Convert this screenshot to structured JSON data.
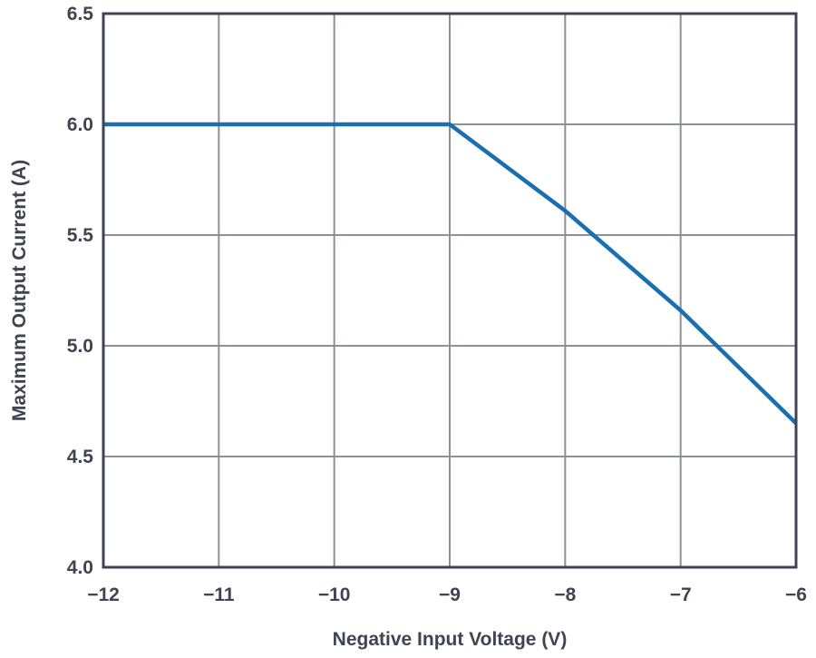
{
  "chart_data": {
    "type": "line",
    "title": "",
    "xlabel": "Negative Input Voltage (V)",
    "ylabel": "Maximum Output Current (A)",
    "xlim": [
      -12,
      -6
    ],
    "ylim": [
      4.0,
      6.5
    ],
    "x_ticks": [
      -12,
      -11,
      -10,
      -9,
      -8,
      -7,
      -6
    ],
    "x_tick_labels": [
      "−12",
      "−11",
      "−10",
      "−9",
      "−8",
      "−7",
      "−6"
    ],
    "y_ticks": [
      4.0,
      4.5,
      5.0,
      5.5,
      6.0,
      6.5
    ],
    "y_tick_labels": [
      "4.0",
      "4.5",
      "5.0",
      "5.5",
      "6.0",
      "6.5"
    ],
    "grid": true,
    "legend": "none",
    "series": [
      {
        "color": "#1a6fb0",
        "x": [
          -12,
          -11,
          -10,
          -9,
          -8,
          -7,
          -6
        ],
        "y": [
          6.0,
          6.0,
          6.0,
          6.0,
          5.61,
          5.16,
          4.65
        ]
      }
    ],
    "colors": {
      "line": "#1a6fb0",
      "grid": "#8e9098",
      "frame": "#3f4451",
      "text": "#3f4451"
    }
  }
}
